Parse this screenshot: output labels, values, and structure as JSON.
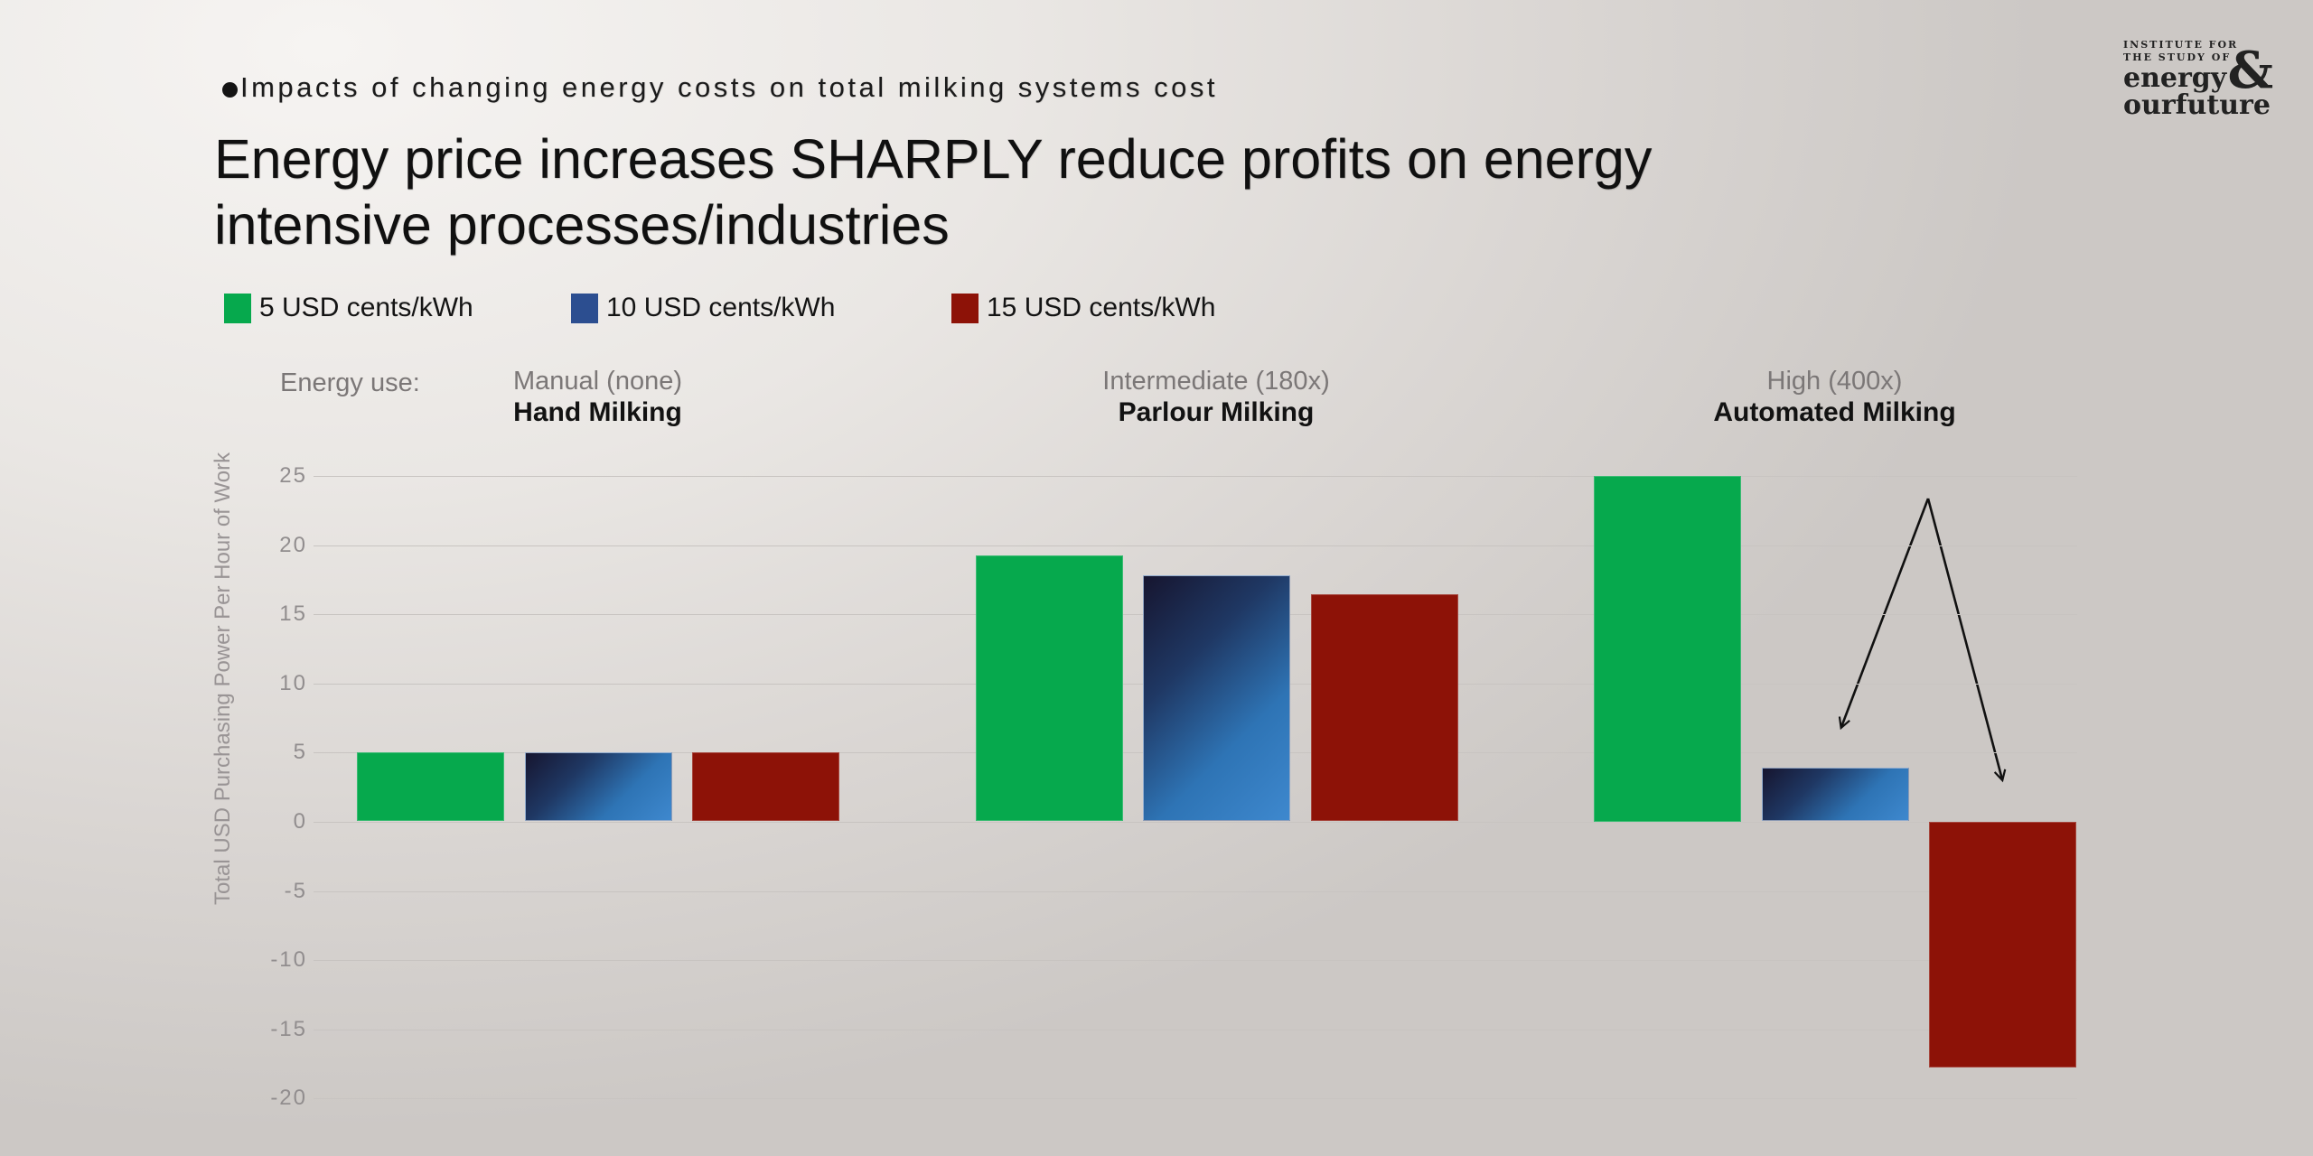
{
  "slide": {
    "kicker": "Impacts of changing energy costs on total milking systems cost",
    "title_line1": "Energy price increases SHARPLY reduce profits on energy",
    "title_line2": "intensive processes/industries"
  },
  "logo": {
    "line1": "INSTITUTE FOR",
    "line2": "THE STUDY OF",
    "word1": "energy",
    "amp": "&",
    "word2": "ourfuture"
  },
  "labels": {
    "energy_use": "Energy use:"
  },
  "chart_data": {
    "type": "bar",
    "categories": [
      "Hand Milking",
      "Parlour Milking",
      "Automated Milking"
    ],
    "category_subtitles": [
      "Manual (none)",
      "Intermediate (180x)",
      "High (400x)"
    ],
    "series": [
      {
        "name": "5 USD cents/kWh",
        "color": "#06A94D",
        "values": [
          5,
          19.2,
          25
        ]
      },
      {
        "name": "10 USD cents/kWh",
        "color": "#2C4E90",
        "bar_gradient": [
          "#16152F",
          "#1F3864",
          "#2E74B5",
          "#3E88CE"
        ],
        "values": [
          5,
          17.8,
          3.9
        ]
      },
      {
        "name": "15 USD cents/kWh",
        "color": "#8D1207",
        "values": [
          5,
          16.4,
          -17.8
        ]
      }
    ],
    "ylabel": "Total USD Purchasing Power Per Hour of Work",
    "ylim": [
      -20,
      25
    ],
    "yticks": [
      25,
      20,
      15,
      10,
      5,
      0,
      -5,
      -10,
      -15,
      -20
    ],
    "grid": true,
    "legend_position": "top-left",
    "annotation": {
      "type": "fork-arrow",
      "description": "arrow forking from one apex down to the 10 USD cents/kWh and 15 USD cents/kWh bars of Automated Milking"
    }
  },
  "colors": {
    "background_light": "#F6F4F2",
    "background_dark": "#CCC8C5",
    "gridline": "#C8C4C1",
    "tick_text": "#918D8E",
    "header_subtitle": "#7B7777",
    "text": "#111111"
  }
}
